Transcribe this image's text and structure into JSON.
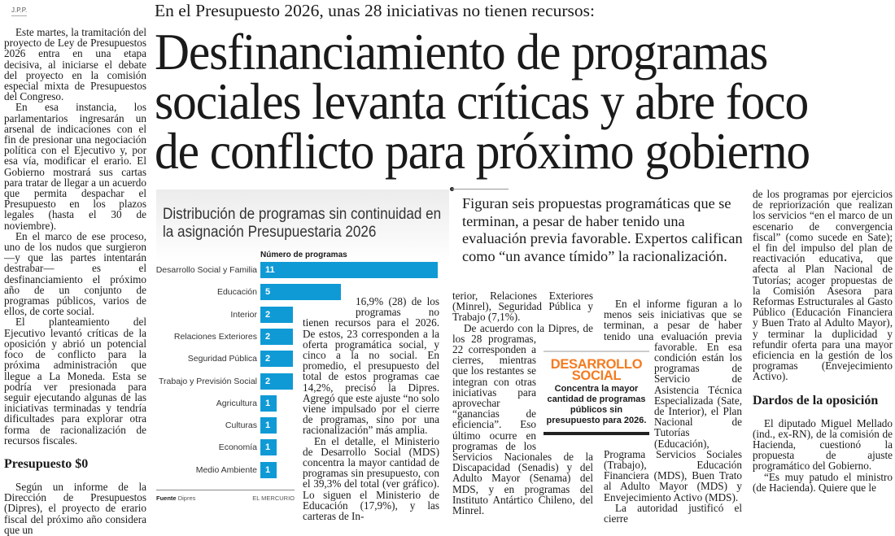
{
  "byline": "J.P.P.",
  "kicker": "En el Presupuesto 2026, unas 28 iniciativas no tienen recursos:",
  "headline": [
    "Desfinanciamiento de programas",
    "sociales levanta críticas y abre foco",
    "de conflicto para próximo gobierno"
  ],
  "column1": {
    "paragraphs": [
      "Este martes, la tramitación del proyecto de Ley de Presupuestos 2026 entra en una etapa decisiva, al iniciarse el debate del proyecto en la comisión especial mixta de Presupuestos del Congreso.",
      "En esa instancia, los parlamentarios ingresarán un arsenal de indicaciones con el fin de presionar una negociación política con el Ejecutivo y, por esa vía, modificar el erario. El Gobierno mostrará sus cartas para tratar de llegar a un acuerdo que permita despachar el Presupuesto en los plazos legales (hasta el 30 de noviembre).",
      "En el marco de ese proceso, uno de los nudos que surgieron —y que las partes intentarán destrabar— es el desfinanciamiento el próximo año de un conjunto de programas públicos, varios de ellos, de corte social.",
      "El planteamiento del Ejecutivo levantó críticas de la oposición y abrió un potencial foco de conflicto para la próxima administración que llegue a La Moneda. Esta se podría ver presionada para seguir ejecutando algunas de las iniciativas terminadas y tendría dificultades para explorar otra forma de racionalización de recursos fiscales."
    ],
    "subhead": "Presupuesto $0",
    "after": "Según un informe de la Dirección de Presupuestos (Dipres), el proyecto de erario fiscal del próximo año considera que un"
  },
  "column2": [
    "16,9% (28) de los programas no tienen recursos para el 2026. De estos, 23 corresponden a la oferta programática social, y cinco a la no social. En promedio, el presupuesto del total de estos programas cae 14,2%, precisó la Dipres. Agregó que este ajuste “no solo viene impulsado por el cierre de programas, sino por una racionalización” más amplia.",
    "En el detalle, el Ministerio de Desarrollo Social (MDS) concentra la mayor cantidad de programas sin presupuesto, con el 39,3% del total (ver gráfico). Lo siguen el Ministerio de Educación (17,9%), y las carteras de In-"
  ],
  "column3": [
    "terior, Relaciones Exteriores (Minrel), Seguridad Pública y Trabajo (7,1%).",
    "De acuerdo con la Dipres, de los 28 programas, 22 corresponden a cierres, mientras que los restantes se integran con otras iniciativas para aprovechar “ganancias de eficiencia”. Eso último ocurre en programas de los Servicios Nacionales de la Discapacidad (Senadis) y del Adulto Mayor (Senama) del MDS, y en programas del Instituto Antártico Chileno, del Minrel."
  ],
  "column4": [
    "En el informe figuran a lo menos seis iniciativas que se terminan, a pesar de haber tenido una evaluación previa favorable. En esa condición están los programas de Servicio de Asistencia Técnica Especializada (Sate, de Interior), el Plan Nacional de Tutorías (Educación), Programa Servicios Sociales (Trabajo), Educación Financiera (MDS), Buen Trato al Adulto Mayor (MDS) y Envejecimiento Activo (MDS).",
    "La autoridad justificó el cierre"
  ],
  "column5": {
    "paragraphs": [
      "de los programas por ejercicios de repriorización que realizan los servicios “en el marco de un escenario de convergencia fiscal” (como sucede en Sate); el fin del impulso del plan de reactivación educativa, que afecta al Plan Nacional de Tutorías; acoger propuestas de la Comisión Asesora para Reformas Estructurales al Gasto Público (Educación Financiera y Buen Trato al Adulto Mayor), y terminar la duplicidad y refundir oferta para una mayor eficiencia en la gestión de los programas (Envejecimiento Activo)."
    ],
    "subhead": "Dardos de la oposición",
    "after": [
      "El diputado Miguel Mellado (ind., ex-RN), de la comisión de Hacienda, cuestionó la propuesta de ajuste programático del Gobierno.",
      "“Es muy patudo el ministro (de Hacienda). Quiere que le"
    ]
  },
  "pull_quote": "Figuran seis propuestas programáticas que se terminan, a pesar de haber tenido una evaluación previa favorable. Expertos califican como “un avance tímido” la racionalización.",
  "highlight_box": {
    "title": "DESARROLLO SOCIAL",
    "text": "Concentra la mayor cantidad de programas públicos sin presupuesto para 2026.",
    "title_color": "#f47b20"
  },
  "chart_data": {
    "type": "bar",
    "orientation": "horizontal",
    "title": "Distribución de programas sin continuidad en la asignación Presupuestaria 2026",
    "xlabel": "Número de programas",
    "categories": [
      "Desarrollo Social y Familia",
      "Educación",
      "Interior",
      "Relaciones Exteriores",
      "Seguridad Pública",
      "Trabajo y Previsión Social",
      "Agricultura",
      "Culturas",
      "Economía",
      "Medio Ambiente"
    ],
    "values": [
      11,
      5,
      2,
      2,
      2,
      2,
      1,
      1,
      1,
      1
    ],
    "bar_color": "#0f9ad6",
    "grid": false,
    "source_label": "Fuente",
    "source": "Dipres",
    "credit": "EL MERCURIO"
  }
}
